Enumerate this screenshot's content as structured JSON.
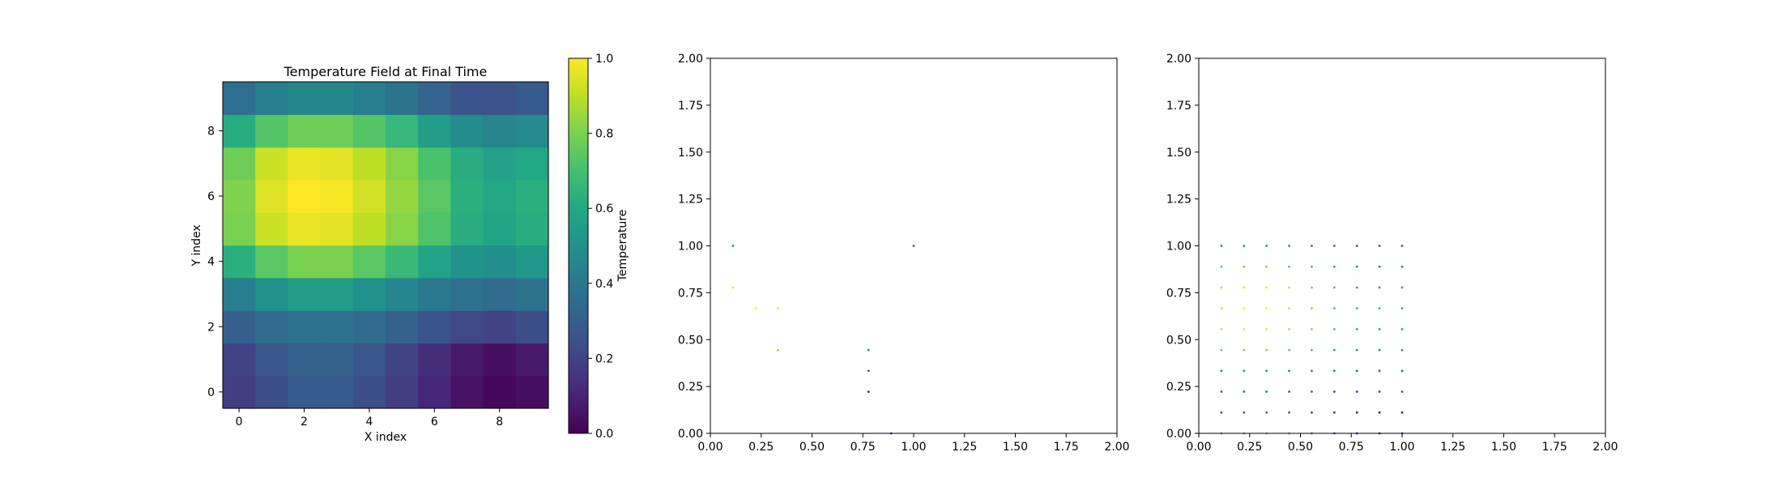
{
  "chart_data": [
    {
      "type": "heatmap",
      "title": "Temperature Field at Final Time",
      "xlabel": "X index",
      "ylabel": "Y index",
      "xticks": [
        "0",
        "2",
        "4",
        "6",
        "8"
      ],
      "yticks": [
        "0",
        "2",
        "4",
        "6",
        "8"
      ],
      "colormap": "viridis",
      "vmin": 0.0,
      "vmax": 1.0,
      "colorbar_label": "Temperature",
      "colorbar_ticks": [
        "0.0",
        "0.2",
        "0.4",
        "0.6",
        "0.8",
        "1.0"
      ],
      "grid_rows_note": "row 0 = Y index 0",
      "values": [
        [
          0.18,
          0.24,
          0.28,
          0.28,
          0.24,
          0.18,
          0.11,
          0.05,
          0.02,
          0.04
        ],
        [
          0.2,
          0.27,
          0.31,
          0.31,
          0.27,
          0.2,
          0.13,
          0.07,
          0.04,
          0.07
        ],
        [
          0.3,
          0.35,
          0.37,
          0.37,
          0.35,
          0.31,
          0.26,
          0.22,
          0.2,
          0.24
        ],
        [
          0.42,
          0.5,
          0.55,
          0.55,
          0.5,
          0.46,
          0.4,
          0.37,
          0.35,
          0.38
        ],
        [
          0.63,
          0.74,
          0.8,
          0.8,
          0.74,
          0.67,
          0.58,
          0.51,
          0.49,
          0.53
        ],
        [
          0.8,
          0.92,
          0.97,
          0.96,
          0.9,
          0.82,
          0.72,
          0.62,
          0.58,
          0.62
        ],
        [
          0.81,
          0.95,
          1.0,
          0.99,
          0.93,
          0.84,
          0.74,
          0.63,
          0.59,
          0.63
        ],
        [
          0.78,
          0.92,
          0.97,
          0.96,
          0.9,
          0.82,
          0.71,
          0.62,
          0.57,
          0.6
        ],
        [
          0.62,
          0.73,
          0.78,
          0.78,
          0.73,
          0.66,
          0.55,
          0.48,
          0.45,
          0.47
        ],
        [
          0.36,
          0.42,
          0.46,
          0.46,
          0.42,
          0.38,
          0.32,
          0.26,
          0.25,
          0.28
        ]
      ]
    },
    {
      "type": "scatter",
      "xlim": [
        0.0,
        2.0
      ],
      "ylim": [
        0.0,
        2.0
      ],
      "xticks": [
        "0.00",
        "0.25",
        "0.50",
        "0.75",
        "1.00",
        "1.25",
        "1.50",
        "1.75",
        "2.00"
      ],
      "yticks": [
        "0.00",
        "0.25",
        "0.50",
        "0.75",
        "1.00",
        "1.25",
        "1.50",
        "1.75",
        "2.00"
      ],
      "points": [
        {
          "x": 0.111,
          "y": 1.0,
          "v": 0.46
        },
        {
          "x": 1.0,
          "y": 1.0,
          "v": 0.3
        },
        {
          "x": 0.111,
          "y": 0.778,
          "v": 0.95
        },
        {
          "x": 0.222,
          "y": 0.667,
          "v": 1.0
        },
        {
          "x": 0.333,
          "y": 0.667,
          "v": 0.97
        },
        {
          "x": 0.333,
          "y": 0.444,
          "v": 0.85
        },
        {
          "x": 0.778,
          "y": 0.444,
          "v": 0.55
        },
        {
          "x": 0.778,
          "y": 0.333,
          "v": 0.28
        },
        {
          "x": 0.778,
          "y": 0.222,
          "v": 0.1
        },
        {
          "x": 0.889,
          "y": 0.0,
          "v": 0.05
        }
      ]
    },
    {
      "type": "scatter",
      "xlim": [
        0.0,
        2.0
      ],
      "ylim": [
        0.0,
        2.0
      ],
      "xticks": [
        "0.00",
        "0.25",
        "0.50",
        "0.75",
        "1.00",
        "1.25",
        "1.50",
        "1.75",
        "2.00"
      ],
      "yticks": [
        "0.00",
        "0.25",
        "0.50",
        "0.75",
        "1.00",
        "1.25",
        "1.50",
        "1.75",
        "2.00"
      ],
      "grid_points_from": "heatmap values at x = 0.111..1.0, y = 0.0..1.0 (10 × 10)"
    }
  ]
}
